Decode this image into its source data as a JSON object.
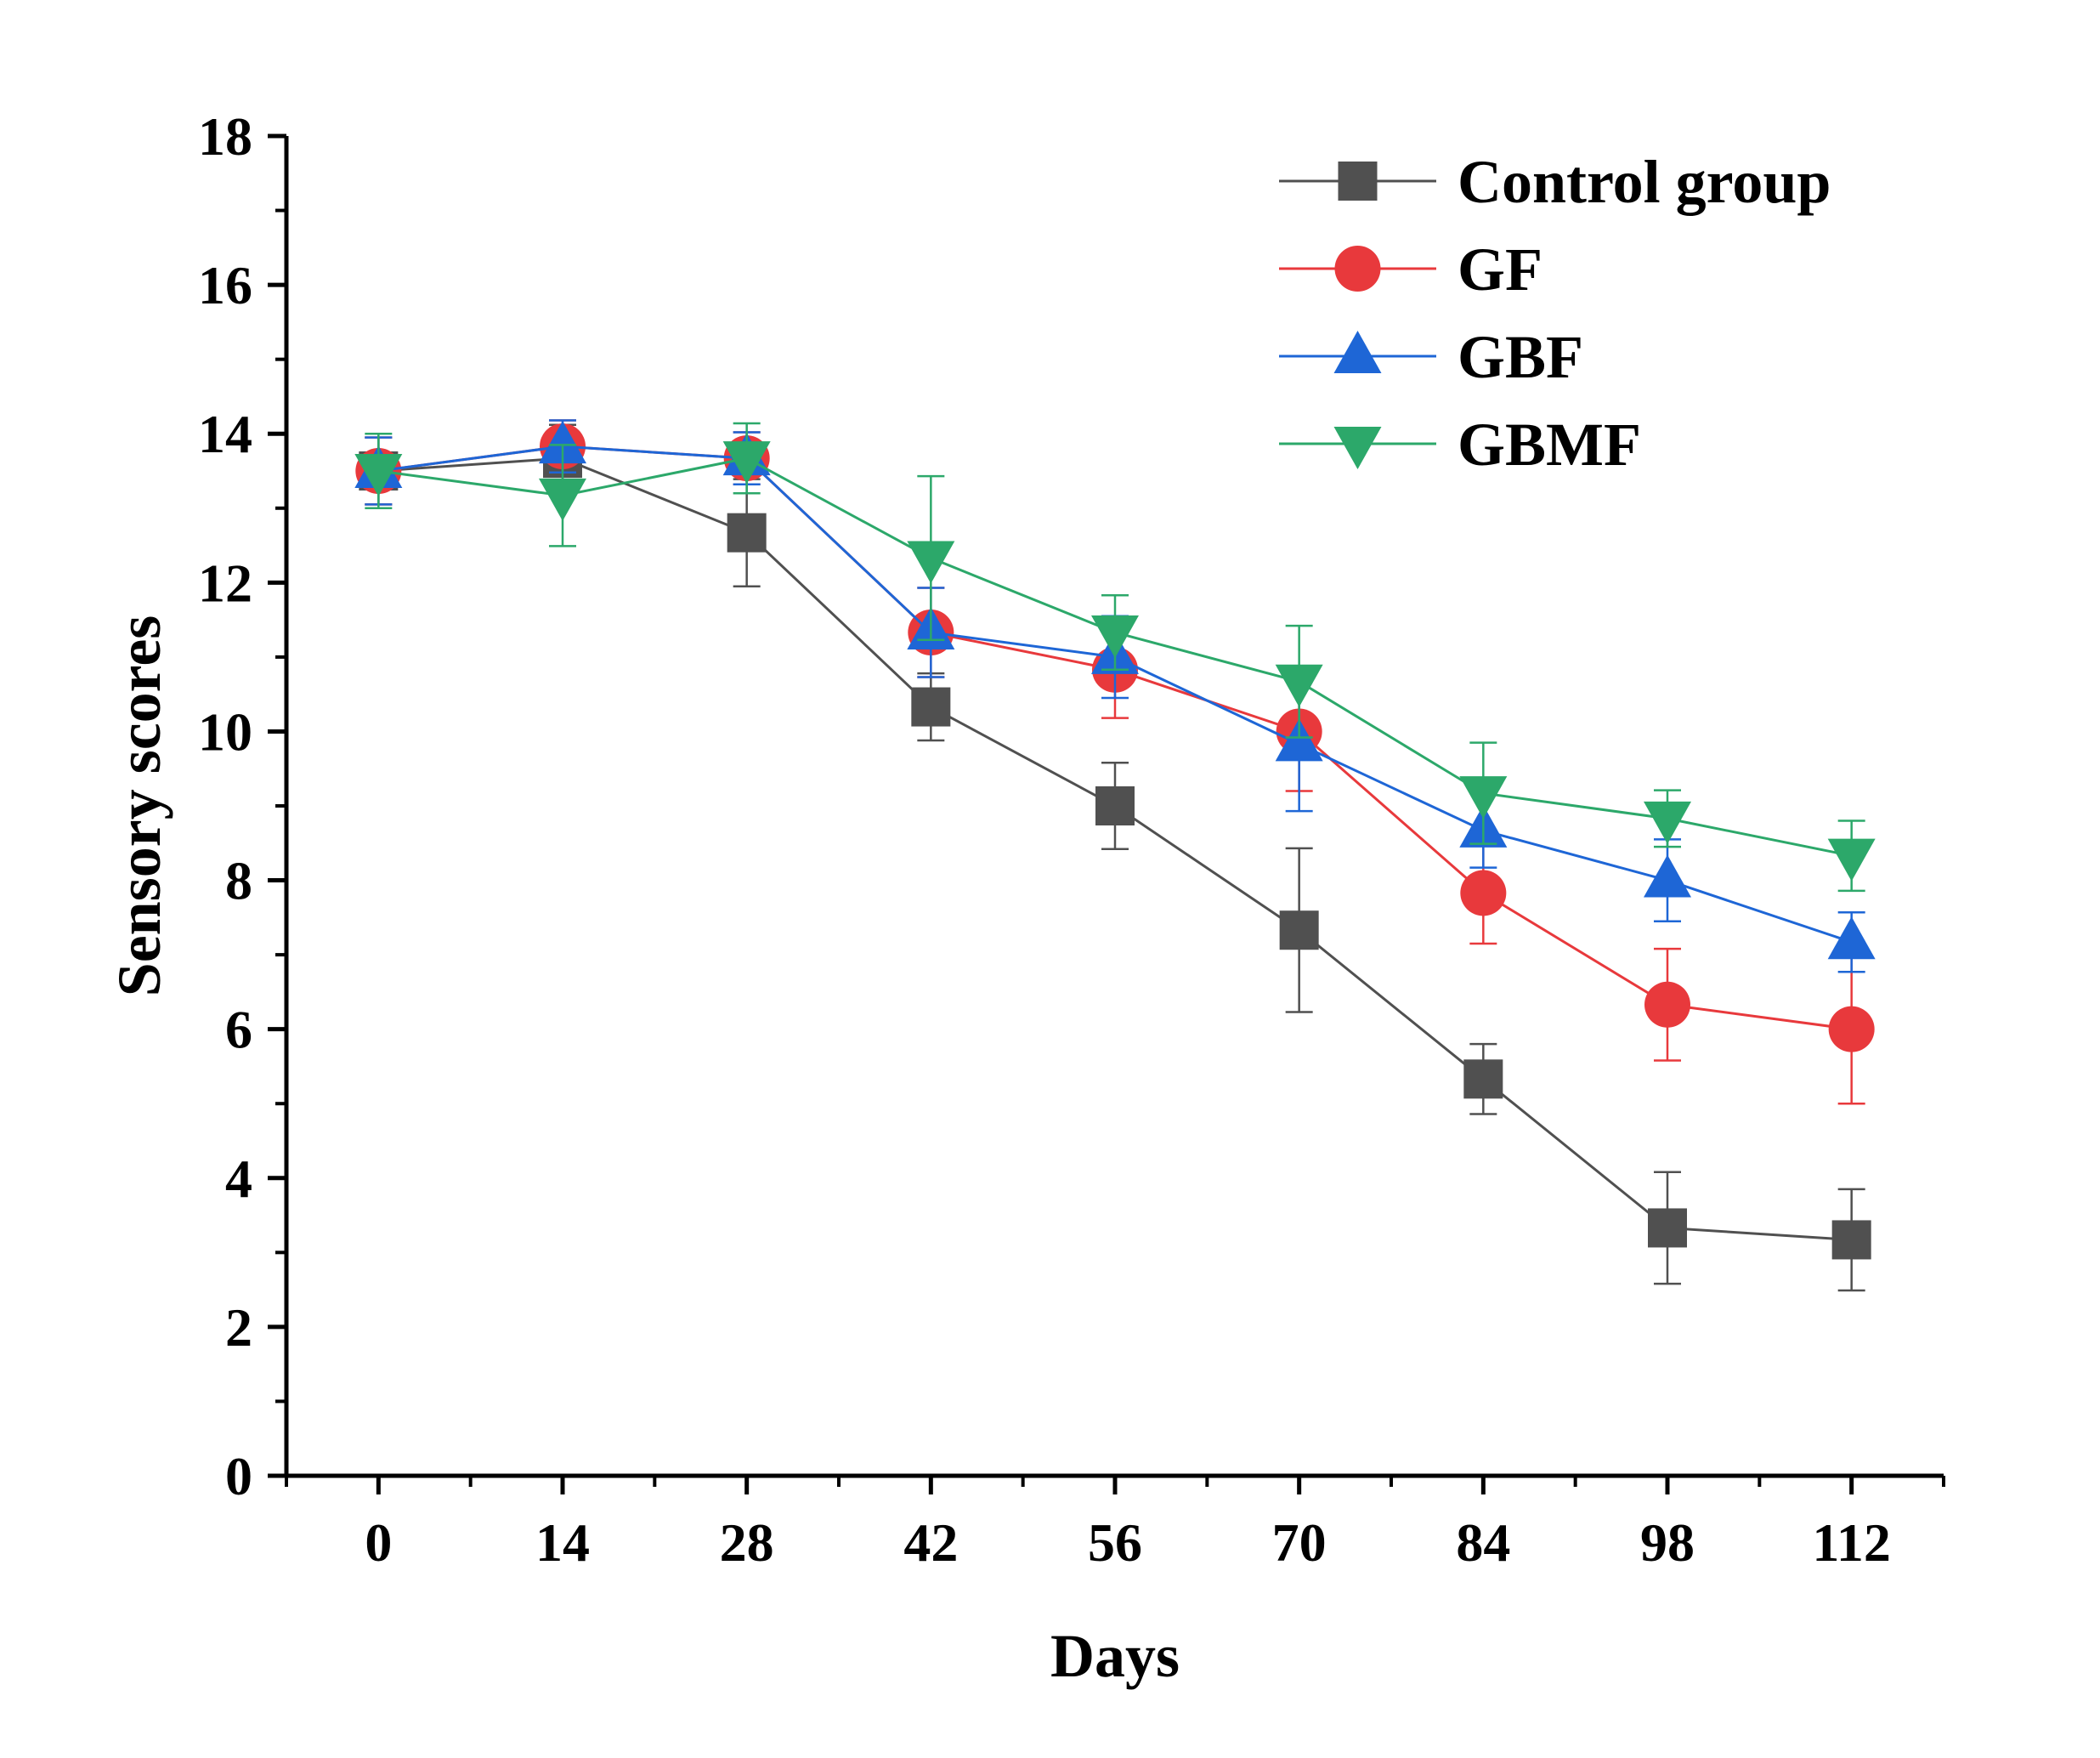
{
  "chart_data": {
    "type": "line",
    "title": "",
    "xlabel": "Days",
    "ylabel": "Sensory scores",
    "x": [
      0,
      14,
      28,
      42,
      56,
      70,
      84,
      98,
      112
    ],
    "x_tick_labels": [
      "0",
      "14",
      "28",
      "42",
      "56",
      "70",
      "84",
      "98",
      "112"
    ],
    "xlim": [
      -7,
      119
    ],
    "ylim": [
      0,
      18
    ],
    "y_ticks": [
      0,
      2,
      4,
      6,
      8,
      10,
      12,
      14,
      16,
      18
    ],
    "y_tick_labels": [
      "0",
      "2",
      "4",
      "6",
      "8",
      "10",
      "12",
      "14",
      "16",
      "18"
    ],
    "grid": false,
    "legend_position": "top-right",
    "series": [
      {
        "name": "Control group",
        "marker": "square",
        "color": "#505050",
        "values": [
          13.5,
          13.67,
          12.67,
          10.33,
          9.0,
          7.33,
          5.33,
          3.33,
          3.17
        ],
        "errors": [
          0.45,
          0.45,
          0.72,
          0.45,
          0.58,
          1.1,
          0.47,
          0.75,
          0.68
        ]
      },
      {
        "name": "GF",
        "marker": "circle",
        "color": "#e8393c",
        "values": [
          13.5,
          13.83,
          13.67,
          11.33,
          10.83,
          10.0,
          7.83,
          6.33,
          6.0
        ],
        "errors": [
          0.45,
          0.35,
          0.35,
          0.6,
          0.65,
          0.8,
          0.68,
          0.75,
          1.0
        ]
      },
      {
        "name": "GBF",
        "marker": "triangle-up",
        "color": "#1e66d6",
        "values": [
          13.5,
          13.83,
          13.67,
          11.33,
          11.0,
          9.83,
          8.67,
          8.0,
          7.17
        ],
        "errors": [
          0.45,
          0.35,
          0.35,
          0.6,
          0.55,
          0.9,
          0.5,
          0.55,
          0.4
        ]
      },
      {
        "name": "GBMF",
        "marker": "triangle-down",
        "color": "#2ca86a",
        "values": [
          13.5,
          13.17,
          13.67,
          12.33,
          11.33,
          10.67,
          9.17,
          8.83,
          8.33
        ],
        "errors": [
          0.5,
          0.68,
          0.47,
          1.1,
          0.5,
          0.75,
          0.68,
          0.38,
          0.47
        ]
      }
    ]
  }
}
